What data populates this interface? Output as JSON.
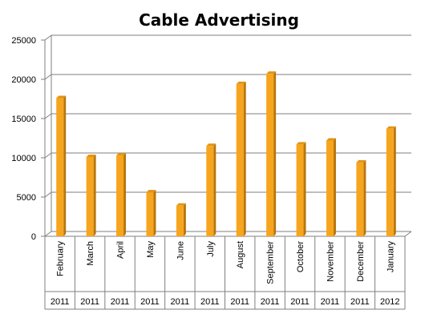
{
  "chart_data": {
    "type": "bar",
    "title": "Cable Advertising",
    "categories": [
      "February",
      "March",
      "April",
      "May",
      "June",
      "July",
      "August",
      "September",
      "October",
      "November",
      "December",
      "January"
    ],
    "years": [
      "2011",
      "2011",
      "2011",
      "2011",
      "2011",
      "2011",
      "2011",
      "2011",
      "2011",
      "2011",
      "2011",
      "2012"
    ],
    "values": [
      17600,
      10100,
      10300,
      5600,
      3900,
      11500,
      19400,
      20700,
      11700,
      12200,
      9400,
      13700
    ],
    "ylim": [
      0,
      25000
    ],
    "yticks": [
      "25000",
      "20000",
      "15000",
      "10000",
      "5000",
      "0"
    ],
    "xlabel": "",
    "ylabel": "",
    "grid": true,
    "legend": "none",
    "colors": {
      "bar_front": "#f7a51e",
      "bar_side": "#b8770c",
      "bar_top": "#e09416",
      "grid": "#7f7f7f",
      "axis": "#7f7f7f"
    }
  }
}
